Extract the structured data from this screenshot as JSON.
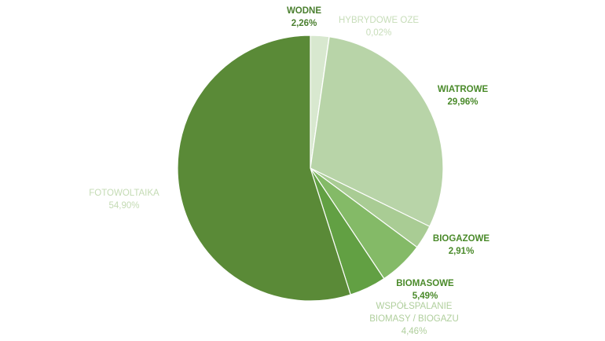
{
  "chart_data": {
    "type": "pie",
    "title": "",
    "start": "top",
    "direction": "clockwise",
    "slices": [
      {
        "label": "WODNE",
        "value": 2.26,
        "value_label": "2,26%",
        "color": "#d8e8cf",
        "label_color": "#4a7f2f"
      },
      {
        "label": "HYBRYDOWE OZE",
        "value": 0.02,
        "value_label": "0,02%",
        "color": "#cfe3c2",
        "label_color": "#c7ddb9"
      },
      {
        "label": "WIATROWE",
        "value": 29.96,
        "value_label": "29,96%",
        "color": "#b8d4a8",
        "label_color": "#4a8a2a"
      },
      {
        "label": "BIOGAZOWE",
        "value": 2.91,
        "value_label": "2,91%",
        "color": "#a9cc94",
        "label_color": "#4a8a2a"
      },
      {
        "label": "BIOMASOWE",
        "value": 5.49,
        "value_label": "5,49%",
        "color": "#84ba67",
        "label_color": "#4a8a2a"
      },
      {
        "label": "WSPÓŁSPALANIE BIOMASY / BIOGAZU",
        "label_line1": "WSPÓŁSPALANIE",
        "label_line2": "BIOMASY / BIOGAZU",
        "value": 4.46,
        "value_label": "4,46%",
        "color": "#62a043",
        "label_color": "#b0cf9d"
      },
      {
        "label": "FOTOWOLTAIKA",
        "value": 54.9,
        "value_label": "54,90%",
        "color": "#5a8a37",
        "label_color": "#c4dbb4"
      }
    ]
  }
}
